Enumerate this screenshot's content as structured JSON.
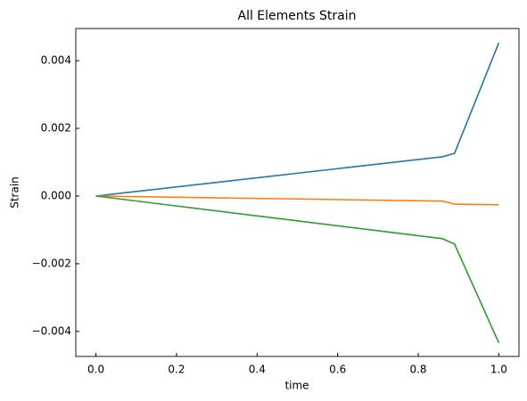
{
  "chart_data": {
    "type": "line",
    "title": "All Elements Strain",
    "x_label": "time",
    "y_label": "Strain",
    "x": [
      0,
      0.86,
      0.89,
      1.0
    ],
    "series": [
      {
        "color": "#1f77b4",
        "values": [
          0,
          0.00116,
          0.00126,
          0.00453
        ]
      },
      {
        "color": "#ff7f0e",
        "values": [
          0,
          -0.00015,
          -0.00024,
          -0.00026
        ]
      },
      {
        "color": "#2ca02c",
        "values": [
          0,
          -0.00126,
          -0.00142,
          -0.00434
        ]
      }
    ],
    "xlim": [
      -0.05,
      1.05
    ],
    "xticks": [
      {
        "value": 0,
        "label": "0.0"
      },
      {
        "value": 0.2,
        "label": "0.2"
      },
      {
        "value": 0.4,
        "label": "0.4"
      },
      {
        "value": 0.6,
        "label": "0.6"
      },
      {
        "value": 0.8,
        "label": "0.8"
      },
      {
        "value": 1.0,
        "label": "1.0"
      }
    ],
    "ylim": [
      -0.00474,
      0.00495
    ],
    "yticks": [
      {
        "value": -0.004,
        "label": "−0.004"
      },
      {
        "value": -0.002,
        "label": "−0.002"
      },
      {
        "value": 0,
        "label": "0.000"
      },
      {
        "value": 0.002,
        "label": "0.002"
      },
      {
        "value": 0.004,
        "label": "0.004"
      }
    ],
    "grid": false
  }
}
